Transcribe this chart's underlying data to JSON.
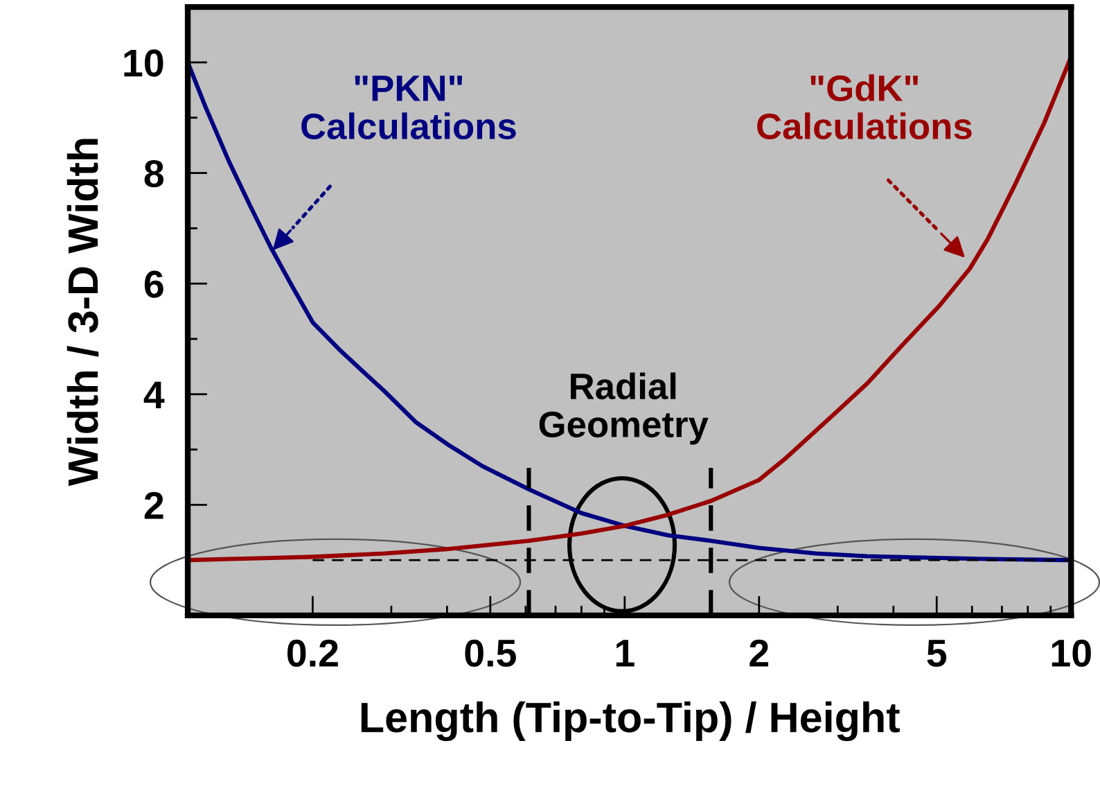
{
  "chart_data": {
    "type": "line",
    "xlabel": "Length (Tip-to-Tip) / Height",
    "ylabel": "Width / 3-D Width",
    "log": "x",
    "xlim": [
      0.105,
      10
    ],
    "ylim": [
      0,
      11
    ],
    "xticks": [
      0.2,
      {
        "value": 0.3,
        "label": null
      },
      {
        "value": 0.4,
        "label": null
      },
      0.5,
      {
        "value": 0.6,
        "label": null
      },
      {
        "value": 0.7,
        "label": null
      },
      {
        "value": 0.8,
        "label": null
      },
      {
        "value": 0.9,
        "label": null
      },
      1,
      2,
      {
        "value": 3,
        "label": null
      },
      {
        "value": 4,
        "label": null
      },
      5,
      {
        "value": 6,
        "label": null
      },
      {
        "value": 7,
        "label": null
      },
      {
        "value": 8,
        "label": null
      },
      {
        "value": 9,
        "label": null
      },
      10
    ],
    "yticks": [
      {
        "value": 1,
        "label": null
      },
      2,
      {
        "value": 3,
        "label": null
      },
      4,
      {
        "value": 5,
        "label": null
      },
      6,
      {
        "value": 7,
        "label": null
      },
      8,
      {
        "value": 9,
        "label": null
      },
      10
    ],
    "grid": false,
    "marker": "none",
    "series": [
      {
        "color": "#000080",
        "line_style": "solid",
        "x": [
          0.105,
          0.115,
          0.13,
          0.145,
          0.161,
          0.18,
          0.2,
          0.23,
          0.26,
          0.29,
          0.34,
          0.4,
          0.48,
          0.61,
          0.8,
          1,
          1.25,
          1.56,
          2,
          2.68,
          3.5,
          5.07,
          6.5,
          10
        ],
        "values": [
          10,
          9.2,
          8.2,
          7.4,
          6.66,
          5.95,
          5.3,
          4.8,
          4.4,
          4.05,
          3.5,
          3.1,
          2.7,
          2.28,
          1.85,
          1.62,
          1.45,
          1.35,
          1.22,
          1.12,
          1.07,
          1.04,
          1.02,
          1.0
        ]
      },
      {
        "color": "#990000",
        "line_style": "solid",
        "x": [
          0.105,
          0.13,
          0.161,
          0.2,
          0.29,
          0.4,
          0.61,
          0.8,
          1,
          1.25,
          1.56,
          2,
          2.3,
          2.68,
          3,
          3.5,
          4.2,
          5.07,
          5.93,
          6.5,
          7.5,
          8.7,
          10
        ],
        "values": [
          1.0,
          1.02,
          1.04,
          1.06,
          1.12,
          1.2,
          1.35,
          1.48,
          1.62,
          1.82,
          2.07,
          2.45,
          2.85,
          3.34,
          3.7,
          4.2,
          4.9,
          5.6,
          6.27,
          6.8,
          7.8,
          8.9,
          10.1
        ]
      },
      {
        "color": "#000000",
        "line_style": "dashed",
        "x": [
          0.2,
          10
        ],
        "values": [
          1,
          1
        ]
      },
      {
        "color": "#000000",
        "line_style": "dashed",
        "x": [
          0.61,
          0.61
        ],
        "values": [
          0,
          2.67
        ]
      },
      {
        "color": "#000000",
        "line_style": "dashed",
        "x": [
          1.56,
          1.56
        ],
        "values": [
          0,
          2.67
        ]
      }
    ],
    "annotations": [
      "\"PKN\"\nCalculations",
      "\"GdK\"\nCalculations",
      "Radial\nGeometry"
    ]
  }
}
